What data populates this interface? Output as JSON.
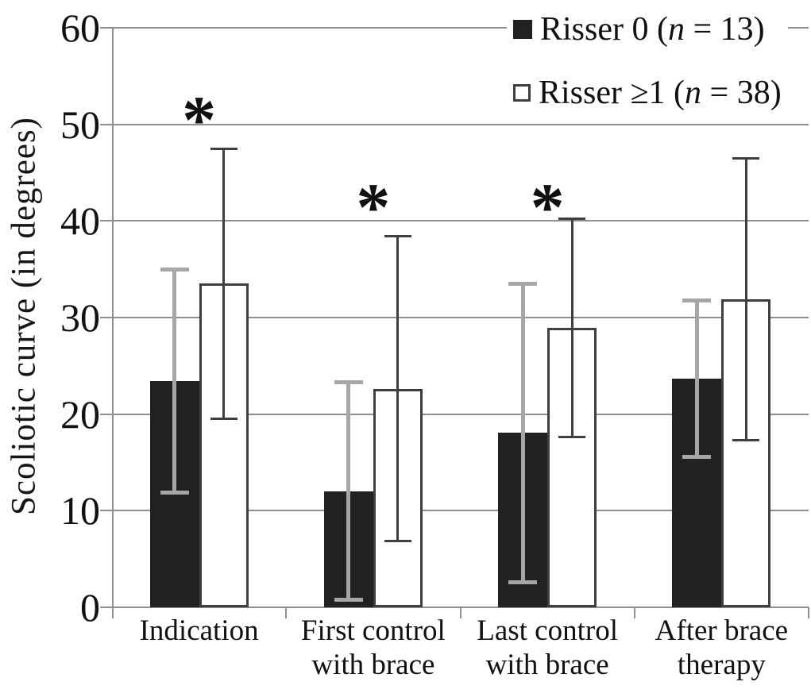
{
  "chart_data": {
    "type": "bar",
    "title": "",
    "xlabel": "",
    "ylabel": "Scoliotic curve (in degrees)",
    "ylim": [
      0,
      60
    ],
    "yticks": [
      0,
      10,
      20,
      30,
      40,
      50,
      60
    ],
    "grid": "horizontal",
    "legend_position": "top-right",
    "categories": [
      {
        "label": "Indication",
        "lines": [
          "Indication"
        ]
      },
      {
        "label": "First control with brace",
        "lines": [
          "First control",
          "with brace"
        ]
      },
      {
        "label": "Last control with brace",
        "lines": [
          "Last control",
          "with brace"
        ]
      },
      {
        "label": "After brace therapy",
        "lines": [
          "After brace",
          "therapy"
        ]
      }
    ],
    "series": [
      {
        "name": "Risser 0 (n = 13)",
        "legend": {
          "prefix": "Risser 0 (",
          "italic": "n",
          "suffix": " = 13)"
        },
        "marker": "filled-black-square",
        "bar_fill": "#212121",
        "error_color": "#a6a6a6",
        "values": [
          23.4,
          12.0,
          18.1,
          23.7
        ],
        "error_low": [
          11.9,
          0.8,
          2.6,
          15.6
        ],
        "error_high": [
          35.0,
          23.3,
          33.5,
          31.8
        ]
      },
      {
        "name": "Risser ≥1 (n = 38)",
        "legend": {
          "prefix": "Risser ≥1 (",
          "italic": "n",
          "suffix": " = 38)"
        },
        "marker": "open-white-square",
        "bar_fill": "#ffffff",
        "bar_border": "#3f3f3f",
        "error_color": "#3f3f3f",
        "values": [
          33.5,
          22.6,
          28.9,
          31.9
        ],
        "error_low": [
          19.5,
          6.9,
          17.6,
          17.3
        ],
        "error_high": [
          47.5,
          38.4,
          40.2,
          46.5
        ]
      }
    ],
    "significance": [
      {
        "category": 0,
        "symbol": "*",
        "y_value": 51.5
      },
      {
        "category": 1,
        "symbol": "*",
        "y_value": 42.5
      },
      {
        "category": 2,
        "symbol": "*",
        "y_value": 42.5
      }
    ],
    "colors": {
      "gridline": "#8f8f8f",
      "axis": "#8f8f8f",
      "background": "#ffffff"
    }
  }
}
